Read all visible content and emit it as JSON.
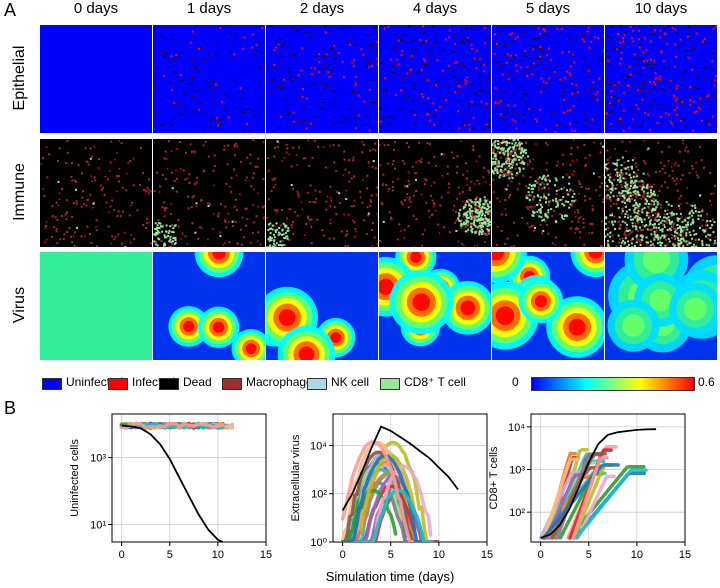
{
  "panel_a_label": "A",
  "panel_b_label": "B",
  "columns": [
    "0 days",
    "1 days",
    "2 days",
    "4 days",
    "5 days",
    "10 days"
  ],
  "rows": [
    "Epithelial",
    "Immune",
    "Virus"
  ],
  "colors": {
    "uninfected": "#0000ff",
    "infected": "#ff0000",
    "dead": "#000000",
    "macrophage": "#a52a2a",
    "nk_cell": "#add8e6",
    "cd8": "#98e698",
    "virus_zero": "#0033ee",
    "virus_full": "#33ee99"
  },
  "legend": {
    "items": [
      {
        "label": "Uninfected",
        "color": "#0000ff"
      },
      {
        "label": "Infected",
        "color": "#ff0000"
      },
      {
        "label": "Dead",
        "color": "#000000"
      },
      {
        "label": "Macrophage",
        "color": "#a52a2a"
      },
      {
        "label": "NK cell",
        "color": "#add8e6"
      },
      {
        "label": "CD8⁺ T cell",
        "color": "#98e698"
      }
    ],
    "scale_min": "0",
    "scale_max": "0.6"
  },
  "xlabel_shared": "Simulation time (days)",
  "chart_data": [
    {
      "type": "line",
      "ylabel": "Uninfected cells",
      "yscale": "log",
      "ylim": [
        3,
        20000
      ],
      "xlim": [
        -1,
        15
      ],
      "xticks": [
        0,
        5,
        10,
        15
      ],
      "yticks": [
        {
          "v": 10,
          "label": "10¹"
        },
        {
          "v": 1000,
          "label": "10³"
        }
      ],
      "grid": true,
      "reference": {
        "color": "#000000",
        "x": [
          0,
          1,
          2,
          3,
          4,
          5,
          6,
          7,
          8,
          9,
          10,
          10.5
        ],
        "y": [
          9000,
          8500,
          7500,
          5000,
          2500,
          900,
          250,
          70,
          20,
          7,
          3.5,
          3
        ]
      },
      "bundle": {
        "color": "#3fb7c4",
        "x_start": 0,
        "x_end": 12,
        "y": 9000
      }
    },
    {
      "type": "line",
      "ylabel": "Extracellular virus",
      "yscale": "log",
      "ylim": [
        1,
        200000
      ],
      "xlim": [
        -1,
        15
      ],
      "xticks": [
        0,
        5,
        10,
        15
      ],
      "yticks": [
        {
          "v": 1,
          "label": "10⁰"
        },
        {
          "v": 100,
          "label": "10²"
        },
        {
          "v": 10000,
          "label": "10⁴"
        }
      ],
      "grid": true,
      "reference": {
        "color": "#000000",
        "x": [
          0,
          1,
          2,
          3,
          4,
          5,
          6,
          7,
          8,
          9,
          10,
          11,
          12
        ],
        "y": [
          20,
          100,
          800,
          8000,
          60000,
          40000,
          22000,
          12000,
          6000,
          3000,
          1200,
          500,
          150
        ]
      }
    },
    {
      "type": "line",
      "ylabel": "CD8+ T cells",
      "yscale": "log",
      "ylim": [
        20,
        20000
      ],
      "xlim": [
        -1,
        15
      ],
      "xticks": [
        0,
        5,
        10,
        15
      ],
      "yticks": [
        {
          "v": 100,
          "label": "10²"
        },
        {
          "v": 1000,
          "label": "10³"
        },
        {
          "v": 10000,
          "label": "10⁴"
        }
      ],
      "grid": true,
      "reference": {
        "color": "#000000",
        "x": [
          0,
          1,
          2,
          3,
          4,
          5,
          6,
          7,
          8,
          9,
          10,
          11,
          12
        ],
        "y": [
          25,
          30,
          50,
          120,
          400,
          1500,
          4000,
          6500,
          7500,
          8000,
          8500,
          8700,
          8800
        ]
      }
    }
  ],
  "series_colors": [
    "#3fb7c4",
    "#e07b39",
    "#d62728",
    "#9467bd",
    "#8c564b",
    "#2ca02c",
    "#bcbd22",
    "#f4a6c6",
    "#1f77b4",
    "#17becf",
    "#ff9896",
    "#98df8a",
    "#c5b0d5",
    "#7f7f7f",
    "#ffbb78"
  ]
}
